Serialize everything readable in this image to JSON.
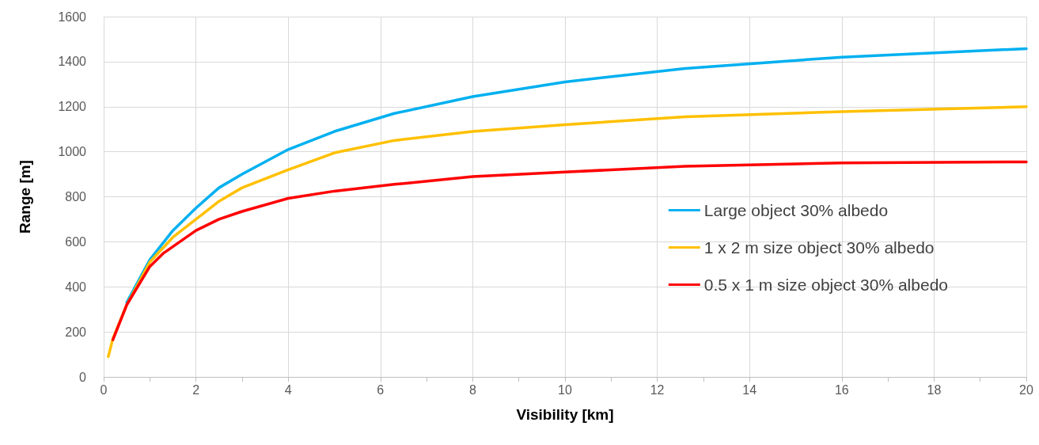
{
  "chart_data": {
    "type": "line",
    "xlabel": "Visibility [km]",
    "ylabel": "Range [m]",
    "xlim": [
      0,
      20
    ],
    "xticks": [
      0,
      2,
      4,
      6,
      8,
      10,
      12,
      14,
      16,
      18,
      20
    ],
    "ylim": [
      0,
      1600
    ],
    "yticks": [
      0,
      200,
      400,
      600,
      800,
      1000,
      1200,
      1400,
      1600
    ],
    "grid": true,
    "legend": "right",
    "marker": "none",
    "line_style": "solid",
    "series": [
      {
        "name": "Large object 30% albedo",
        "color": "#00b0f0",
        "x": [
          0.5,
          1,
          1.5,
          2,
          2.5,
          3,
          4,
          5,
          6.3,
          8,
          10,
          12.6,
          16,
          20
        ],
        "values": [
          330,
          520,
          650,
          750,
          840,
          900,
          1010,
          1090,
          1170,
          1245,
          1310,
          1370,
          1420,
          1458
        ]
      },
      {
        "name": "1 x 2 m size object 30% albedo",
        "color": "#ffc000",
        "x": [
          0.1,
          0.2,
          0.5,
          1,
          1.5,
          2,
          2.5,
          3,
          4,
          5,
          6.3,
          8,
          10,
          12.6,
          16,
          20
        ],
        "values": [
          90,
          170,
          320,
          510,
          620,
          700,
          780,
          840,
          920,
          995,
          1050,
          1090,
          1120,
          1155,
          1178,
          1200
        ]
      },
      {
        "name": "0.5 x 1 m size object 30% albedo",
        "color": "#ff0000",
        "x": [
          0.2,
          0.5,
          1,
          1.3,
          2,
          2.5,
          3,
          4,
          5,
          6.3,
          8,
          10,
          12.6,
          16,
          20
        ],
        "values": [
          165,
          320,
          490,
          550,
          650,
          700,
          735,
          793,
          825,
          855,
          890,
          910,
          935,
          950,
          955
        ]
      }
    ]
  }
}
